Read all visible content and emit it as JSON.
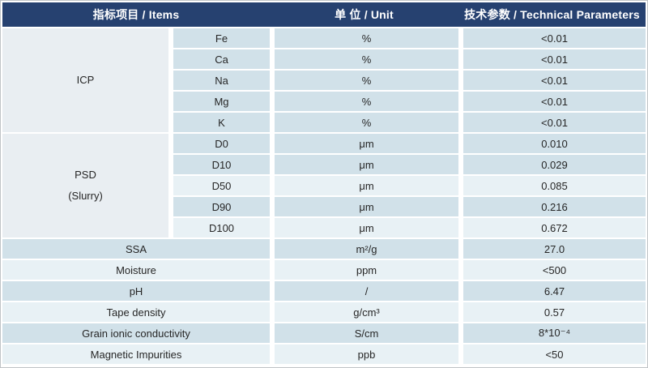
{
  "title": "Product technical parameters table",
  "colors": {
    "header_bg": "#264170",
    "header_text": "#FFFFFF",
    "row_dark": "#D1E1E9",
    "row_light": "#E8F1F5",
    "group_bg": "#E9EEF2",
    "body_text": "#262626",
    "outer_border": "#C0C4C7"
  },
  "header": {
    "items": "指标项目 / Items",
    "unit": "单 位 / Unit",
    "params": "技术参数 / Technical Parameters"
  },
  "groups": [
    {
      "label_line1": "ICP",
      "label_line2": "",
      "rows": [
        {
          "item": "Fe",
          "unit": "%",
          "value": "<0.01",
          "shade": "dark"
        },
        {
          "item": "Ca",
          "unit": "%",
          "value": "<0.01",
          "shade": "dark"
        },
        {
          "item": "Na",
          "unit": "%",
          "value": "<0.01",
          "shade": "dark"
        },
        {
          "item": "Mg",
          "unit": "%",
          "value": "<0.01",
          "shade": "dark"
        },
        {
          "item": "K",
          "unit": "%",
          "value": "<0.01",
          "shade": "dark"
        }
      ]
    },
    {
      "label_line1": "PSD",
      "label_line2": "(Slurry)",
      "rows": [
        {
          "item": "D0",
          "unit": "μm",
          "value": "0.010",
          "shade": "dark"
        },
        {
          "item": "D10",
          "unit": "μm",
          "value": "0.029",
          "shade": "dark"
        },
        {
          "item": "D50",
          "unit": "μm",
          "value": "0.085",
          "shade": "light"
        },
        {
          "item": "D90",
          "unit": "μm",
          "value": "0.216",
          "shade": "dark"
        },
        {
          "item": "D100",
          "unit": "μm",
          "value": "0.672",
          "shade": "light"
        }
      ]
    }
  ],
  "singles": [
    {
      "item": "SSA",
      "unit": "m²/g",
      "value": "27.0",
      "shade": "dark"
    },
    {
      "item": "Moisture",
      "unit": "ppm",
      "value": "<500",
      "shade": "light"
    },
    {
      "item": "pH",
      "unit": "/",
      "value": "6.47",
      "shade": "dark"
    },
    {
      "item": "Tape density",
      "unit": "g/cm³",
      "value": "0.57",
      "shade": "light"
    },
    {
      "item": "Grain ionic conductivity",
      "unit": "S/cm",
      "value": "8*10⁻⁴",
      "shade": "dark"
    },
    {
      "item": "Magnetic Impurities",
      "unit": "ppb",
      "value": "<50",
      "shade": "light"
    }
  ]
}
